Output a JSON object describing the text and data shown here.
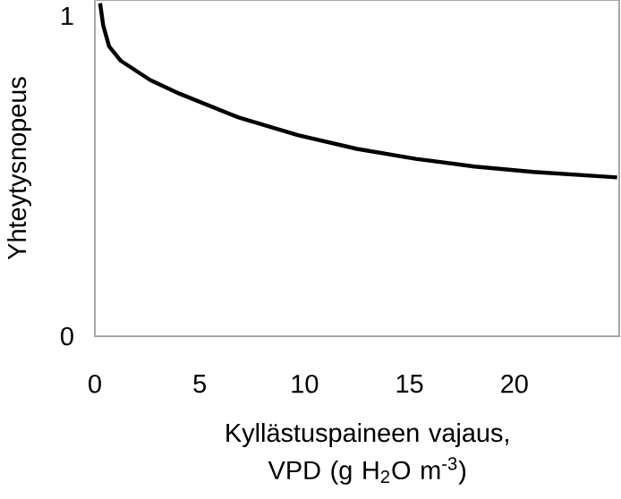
{
  "chart_data": {
    "type": "line",
    "xlabel": "Kyllästuspaineen vajaus, VPD (g H$_{2}$O m$^{-3}$)",
    "ylabel": "Yhteytysnopeus",
    "x": [
      0.25,
      0.4,
      0.68,
      1.24,
      2.64,
      4.05,
      6.86,
      9.68,
      12.5,
      15.3,
      18.1,
      20.9,
      24.9
    ],
    "series": [
      {
        "color": "#000000",
        "values": [
          1.04,
          0.97,
          0.905,
          0.86,
          0.8,
          0.757,
          0.683,
          0.628,
          0.585,
          0.554,
          0.53,
          0.513,
          0.496
        ]
      }
    ],
    "xlim": [
      0,
      25
    ],
    "ylim": [
      0,
      1.05
    ],
    "xticks": [
      0,
      5,
      10,
      15,
      20
    ],
    "yticks": [
      0,
      1
    ],
    "grid": false,
    "marker": "none",
    "line_style": "solid"
  }
}
